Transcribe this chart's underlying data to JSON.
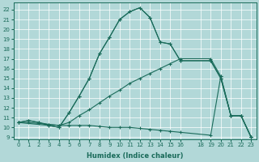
{
  "xlabel": "Humidex (Indice chaleur)",
  "bg_color": "#b2d8d8",
  "grid_color": "#ffffff",
  "line_color": "#1a6b5a",
  "xlim": [
    -0.5,
    23.5
  ],
  "ylim": [
    8.8,
    22.7
  ],
  "yticks": [
    9,
    10,
    11,
    12,
    13,
    14,
    15,
    16,
    17,
    18,
    19,
    20,
    21,
    22
  ],
  "xticks": [
    0,
    1,
    2,
    3,
    4,
    5,
    6,
    7,
    8,
    9,
    10,
    11,
    12,
    13,
    14,
    15,
    16,
    18,
    19,
    20,
    21,
    22,
    23
  ],
  "series": [
    {
      "x": [
        0,
        1,
        2,
        3,
        4,
        5,
        6,
        7,
        8,
        9,
        10,
        11,
        12,
        13,
        14,
        15,
        16,
        19,
        20,
        21,
        22,
        23
      ],
      "y": [
        10.5,
        10.7,
        10.5,
        10.2,
        10.0,
        11.5,
        13.2,
        15.0,
        17.5,
        19.2,
        21.0,
        21.8,
        22.2,
        21.2,
        18.7,
        18.5,
        16.8,
        16.8,
        15.0,
        11.2,
        11.2,
        9.0
      ]
    },
    {
      "x": [
        0,
        3,
        4,
        5,
        6,
        7,
        8,
        9,
        10,
        11,
        12,
        13,
        14,
        15,
        16,
        19,
        20,
        21,
        22,
        23
      ],
      "y": [
        10.5,
        10.2,
        10.0,
        11.5,
        13.2,
        15.0,
        17.5,
        19.2,
        21.0,
        21.8,
        22.2,
        21.2,
        18.7,
        18.5,
        16.8,
        16.8,
        15.0,
        11.2,
        11.2,
        9.0
      ]
    },
    {
      "x": [
        0,
        1,
        2,
        3,
        4,
        5,
        6,
        7,
        8,
        9,
        10,
        11,
        12,
        13,
        14,
        15,
        16,
        19,
        20,
        21,
        22,
        23
      ],
      "y": [
        10.5,
        10.5,
        10.4,
        10.3,
        10.2,
        10.5,
        11.2,
        11.8,
        12.5,
        13.2,
        13.8,
        14.5,
        15.0,
        15.5,
        16.0,
        16.5,
        17.0,
        17.0,
        15.2,
        11.2,
        11.2,
        9.0
      ]
    },
    {
      "x": [
        0,
        1,
        2,
        3,
        4,
        5,
        6,
        7,
        8,
        9,
        10,
        11,
        12,
        13,
        14,
        15,
        16,
        19,
        20,
        21,
        22,
        23
      ],
      "y": [
        10.5,
        10.7,
        10.5,
        10.3,
        10.2,
        10.2,
        10.2,
        10.2,
        10.1,
        10.0,
        10.0,
        10.0,
        9.9,
        9.8,
        9.7,
        9.6,
        9.5,
        9.2,
        15.2,
        11.2,
        11.2,
        9.0
      ]
    }
  ]
}
